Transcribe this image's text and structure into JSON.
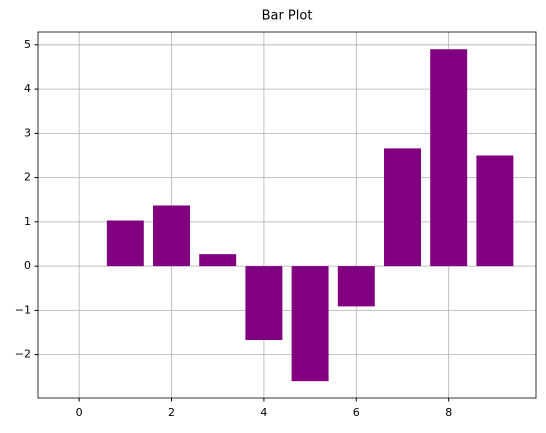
{
  "chart_data": {
    "type": "bar",
    "title": "Bar Plot",
    "x": [
      1,
      2,
      3,
      4,
      5,
      6,
      7,
      8,
      9
    ],
    "values": [
      1.03,
      1.37,
      0.27,
      -1.67,
      -2.6,
      -0.91,
      2.66,
      4.9,
      2.5
    ],
    "color": "#800080",
    "xlim": [
      -0.89,
      9.89
    ],
    "xticks": [
      0,
      2,
      4,
      6,
      8
    ],
    "ylim": [
      -2.98,
      5.29
    ],
    "yticks": [
      {
        "value": -2,
        "label": "−2"
      },
      {
        "value": -1,
        "label": "−1"
      },
      0,
      1,
      2,
      3,
      4,
      5
    ],
    "grid": true
  }
}
